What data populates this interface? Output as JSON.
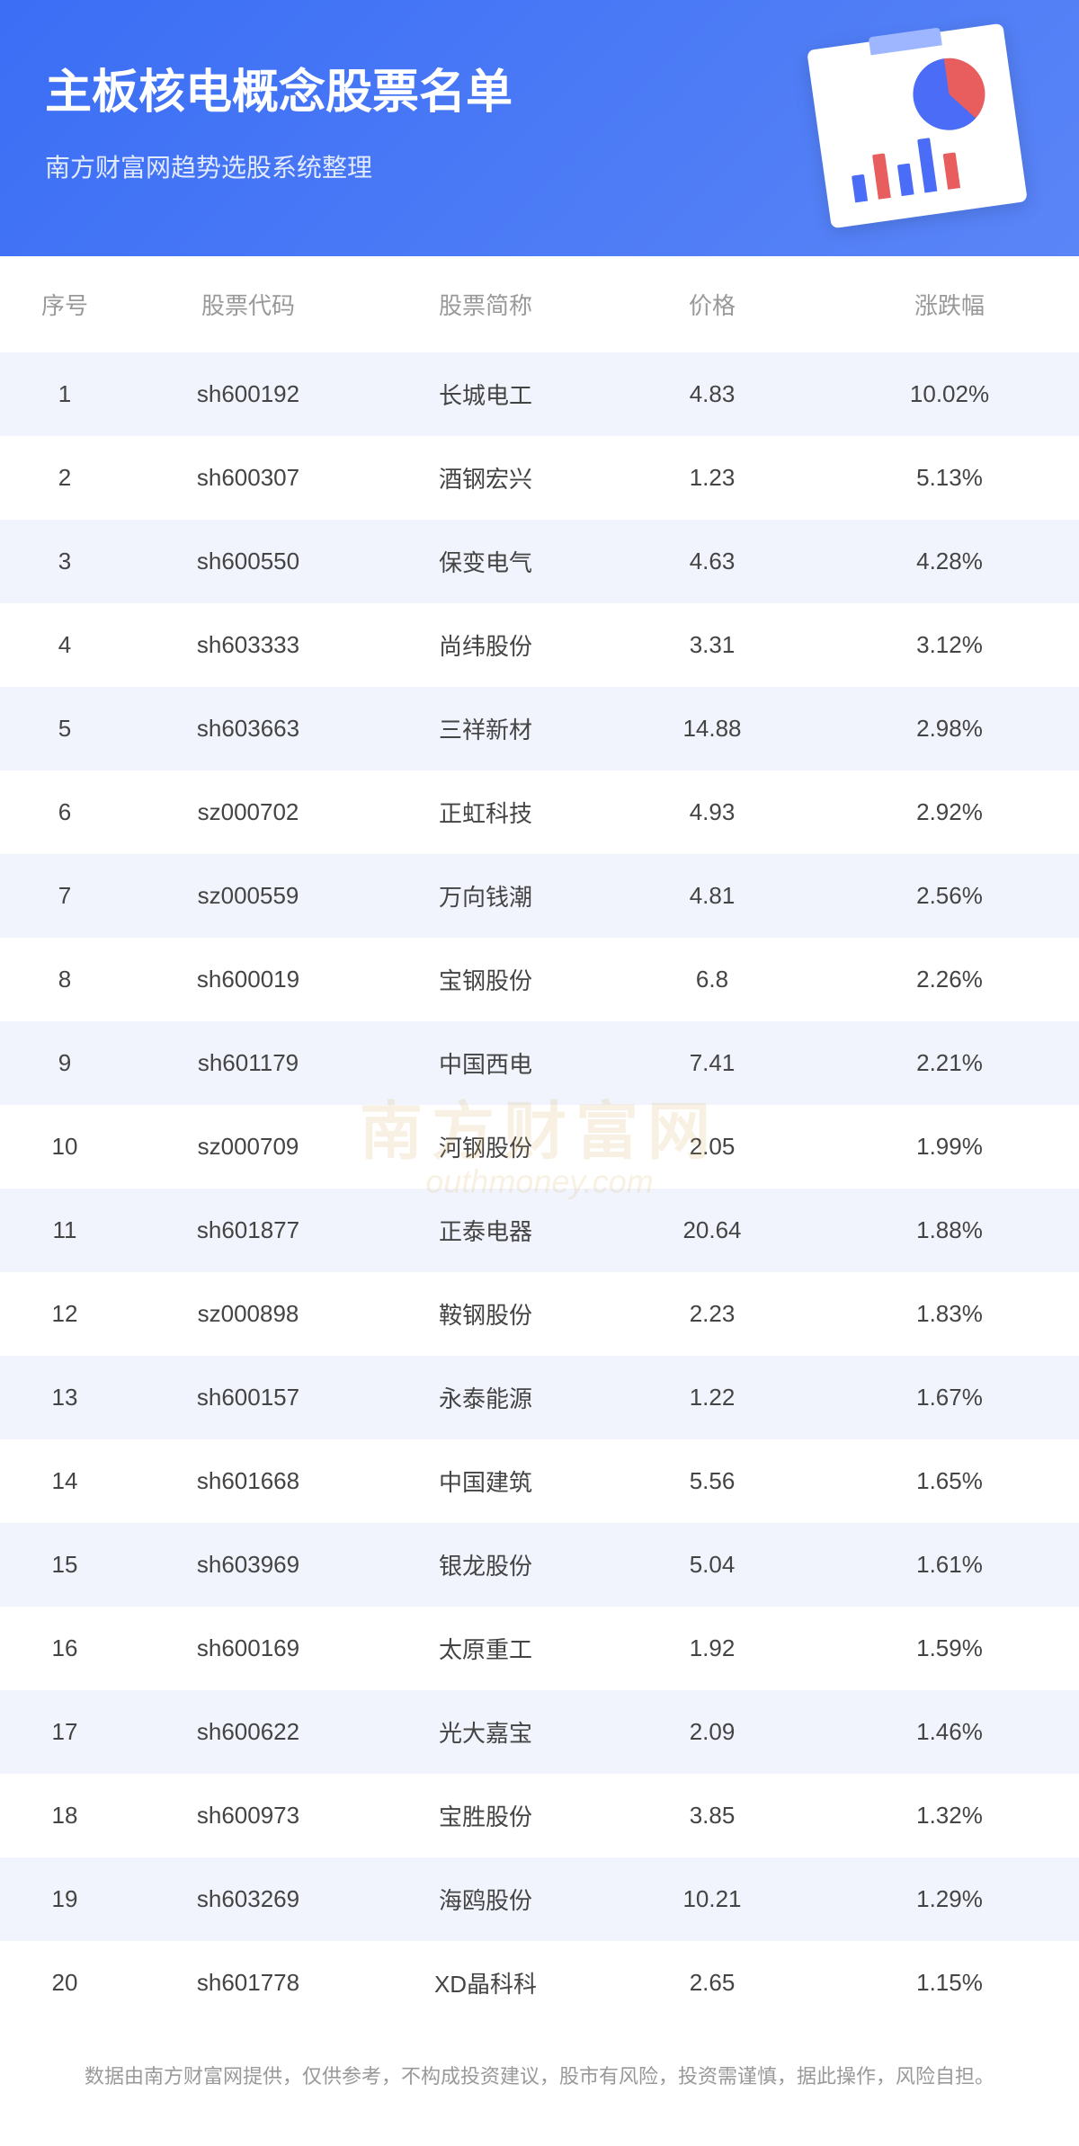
{
  "header": {
    "title": "主板核电概念股票名单",
    "subtitle": "南方财富网趋势选股系统整理",
    "background_gradient_start": "#3b6ef5",
    "background_gradient_end": "#5a85f7",
    "title_color": "#ffffff",
    "title_fontsize": 52,
    "subtitle_fontsize": 28
  },
  "table": {
    "columns": [
      "序号",
      "股票代码",
      "股票简称",
      "价格",
      "涨跌幅"
    ],
    "rows": [
      {
        "index": "1",
        "code": "sh600192",
        "name": "长城电工",
        "price": "4.83",
        "change": "10.02%"
      },
      {
        "index": "2",
        "code": "sh600307",
        "name": "酒钢宏兴",
        "price": "1.23",
        "change": "5.13%"
      },
      {
        "index": "3",
        "code": "sh600550",
        "name": "保变电气",
        "price": "4.63",
        "change": "4.28%"
      },
      {
        "index": "4",
        "code": "sh603333",
        "name": "尚纬股份",
        "price": "3.31",
        "change": "3.12%"
      },
      {
        "index": "5",
        "code": "sh603663",
        "name": "三祥新材",
        "price": "14.88",
        "change": "2.98%"
      },
      {
        "index": "6",
        "code": "sz000702",
        "name": "正虹科技",
        "price": "4.93",
        "change": "2.92%"
      },
      {
        "index": "7",
        "code": "sz000559",
        "name": "万向钱潮",
        "price": "4.81",
        "change": "2.56%"
      },
      {
        "index": "8",
        "code": "sh600019",
        "name": "宝钢股份",
        "price": "6.8",
        "change": "2.26%"
      },
      {
        "index": "9",
        "code": "sh601179",
        "name": "中国西电",
        "price": "7.41",
        "change": "2.21%"
      },
      {
        "index": "10",
        "code": "sz000709",
        "name": "河钢股份",
        "price": "2.05",
        "change": "1.99%"
      },
      {
        "index": "11",
        "code": "sh601877",
        "name": "正泰电器",
        "price": "20.64",
        "change": "1.88%"
      },
      {
        "index": "12",
        "code": "sz000898",
        "name": "鞍钢股份",
        "price": "2.23",
        "change": "1.83%"
      },
      {
        "index": "13",
        "code": "sh600157",
        "name": "永泰能源",
        "price": "1.22",
        "change": "1.67%"
      },
      {
        "index": "14",
        "code": "sh601668",
        "name": "中国建筑",
        "price": "5.56",
        "change": "1.65%"
      },
      {
        "index": "15",
        "code": "sh603969",
        "name": "银龙股份",
        "price": "5.04",
        "change": "1.61%"
      },
      {
        "index": "16",
        "code": "sh600169",
        "name": "太原重工",
        "price": "1.92",
        "change": "1.59%"
      },
      {
        "index": "17",
        "code": "sh600622",
        "name": "光大嘉宝",
        "price": "2.09",
        "change": "1.46%"
      },
      {
        "index": "18",
        "code": "sh600973",
        "name": "宝胜股份",
        "price": "3.85",
        "change": "1.32%"
      },
      {
        "index": "19",
        "code": "sh603269",
        "name": "海鸥股份",
        "price": "10.21",
        "change": "1.29%"
      },
      {
        "index": "20",
        "code": "sh601778",
        "name": "XD晶科科",
        "price": "2.65",
        "change": "1.15%"
      }
    ],
    "header_color": "#999999",
    "header_fontsize": 26,
    "cell_color": "#444444",
    "cell_fontsize": 26,
    "row_odd_bg": "#f1f4fd",
    "row_even_bg": "#ffffff"
  },
  "watermark": {
    "text_cn": "南方财富网",
    "text_en": "outhmoney.com",
    "color": "#d4a84b"
  },
  "disclaimer": {
    "text": "数据由南方财富网提供，仅供参考，不构成投资建议，股市有风险，投资需谨慎，据此操作，风险自担。",
    "color": "#999999",
    "fontsize": 22
  }
}
